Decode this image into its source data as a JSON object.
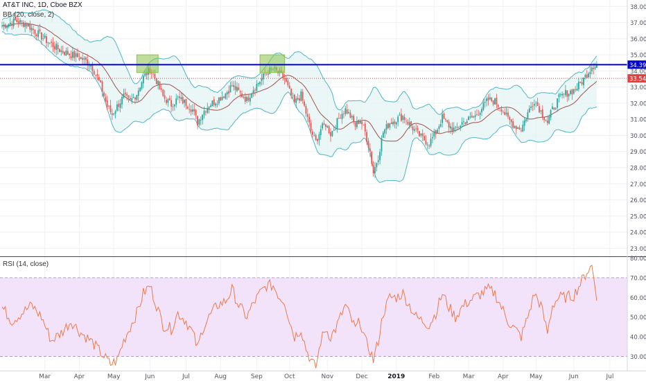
{
  "chart_data": [
    {
      "panel": "price",
      "type": "candlestick",
      "title": "AT&T INC, 1D, Cboe BZX",
      "indicator_label": "BB (20, close, 2)",
      "ylim": [
        22.5,
        38.4
      ],
      "y_ticks": [
        "38.00",
        "37.00",
        "36.00",
        "35.00",
        "34.00",
        "33.00",
        "32.00",
        "31.00",
        "30.00",
        "29.00",
        "28.00",
        "27.00",
        "26.00",
        "25.00",
        "24.00",
        "23.00"
      ],
      "y_tick_values": [
        38,
        37,
        36,
        35,
        34,
        33,
        32,
        31,
        30,
        29,
        28,
        27,
        26,
        25,
        24,
        23
      ],
      "x_ticks": [
        "Mar",
        "Apr",
        "May",
        "Jun",
        "Jul",
        "Aug",
        "Sep",
        "Oct",
        "Nov",
        "Dec",
        "2019",
        "Feb",
        "Mar",
        "Apr",
        "May",
        "Jun",
        "Jul"
      ],
      "x_tick_index": [
        26,
        47,
        68,
        90,
        112,
        133,
        155,
        175,
        198,
        219,
        240,
        263,
        284,
        305,
        325,
        348,
        370
      ],
      "horizontal_levels": [
        {
          "label": "34.39",
          "value": 34.39,
          "color": "#0000cc"
        },
        {
          "label": "33.54",
          "value": 33.54,
          "color": "#e04040"
        }
      ],
      "highlight_boxes": [
        {
          "from_index": 82,
          "to_index": 95,
          "low": 33.9,
          "high": 35.0,
          "color": "#8bc34a"
        },
        {
          "from_index": 157,
          "to_index": 172,
          "low": 33.9,
          "high": 35.0,
          "color": "#8bc34a"
        }
      ],
      "series_close_keyframes": [
        [
          0,
          36.8
        ],
        [
          8,
          37.1
        ],
        [
          15,
          36.9
        ],
        [
          22,
          36.3
        ],
        [
          28,
          35.8
        ],
        [
          35,
          35.3
        ],
        [
          42,
          35.0
        ],
        [
          48,
          34.8
        ],
        [
          54,
          34.4
        ],
        [
          58,
          33.6
        ],
        [
          61,
          32.8
        ],
        [
          64,
          31.8
        ],
        [
          67,
          31.3
        ],
        [
          70,
          31.8
        ],
        [
          74,
          32.4
        ],
        [
          78,
          32.1
        ],
        [
          82,
          32.6
        ],
        [
          86,
          33.6
        ],
        [
          90,
          34.1
        ],
        [
          94,
          33.4
        ],
        [
          98,
          32.4
        ],
        [
          103,
          31.9
        ],
        [
          107,
          32.3
        ],
        [
          112,
          32.0
        ],
        [
          116,
          31.6
        ],
        [
          119,
          30.8
        ],
        [
          122,
          31.4
        ],
        [
          126,
          31.9
        ],
        [
          131,
          32.2
        ],
        [
          136,
          32.6
        ],
        [
          140,
          33.1
        ],
        [
          144,
          32.7
        ],
        [
          149,
          32.2
        ],
        [
          153,
          32.9
        ],
        [
          157,
          33.4
        ],
        [
          161,
          33.9
        ],
        [
          165,
          34.1
        ],
        [
          169,
          33.8
        ],
        [
          172,
          33.5
        ],
        [
          175,
          32.7
        ],
        [
          178,
          32.0
        ],
        [
          182,
          32.5
        ],
        [
          185,
          31.4
        ],
        [
          188,
          30.3
        ],
        [
          191,
          29.6
        ],
        [
          194,
          30.4
        ],
        [
          197,
          30.7
        ],
        [
          200,
          30.1
        ],
        [
          203,
          30.6
        ],
        [
          206,
          31.3
        ],
        [
          209,
          31.6
        ],
        [
          212,
          31.2
        ],
        [
          215,
          30.6
        ],
        [
          218,
          31.0
        ],
        [
          221,
          30.2
        ],
        [
          224,
          29.0
        ],
        [
          226,
          27.7
        ],
        [
          229,
          28.7
        ],
        [
          232,
          30.2
        ],
        [
          236,
          30.8
        ],
        [
          240,
          31.0
        ],
        [
          244,
          31.2
        ],
        [
          248,
          30.7
        ],
        [
          252,
          30.2
        ],
        [
          256,
          29.8
        ],
        [
          260,
          29.5
        ],
        [
          264,
          30.2
        ],
        [
          268,
          31.1
        ],
        [
          272,
          30.6
        ],
        [
          276,
          30.3
        ],
        [
          280,
          30.8
        ],
        [
          284,
          31.0
        ],
        [
          288,
          31.2
        ],
        [
          292,
          31.7
        ],
        [
          296,
          32.2
        ],
        [
          300,
          32.1
        ],
        [
          304,
          31.7
        ],
        [
          308,
          31.0
        ],
        [
          312,
          30.6
        ],
        [
          316,
          30.4
        ],
        [
          320,
          31.4
        ],
        [
          324,
          32.2
        ],
        [
          328,
          31.5
        ],
        [
          332,
          30.8
        ],
        [
          335,
          31.6
        ],
        [
          339,
          32.3
        ],
        [
          343,
          32.6
        ],
        [
          348,
          32.8
        ],
        [
          352,
          33.2
        ],
        [
          356,
          33.8
        ],
        [
          359,
          34.3
        ],
        [
          362,
          34.4
        ]
      ],
      "rsi_keyframes": [
        [
          0,
          55
        ],
        [
          6,
          48
        ],
        [
          12,
          52
        ],
        [
          18,
          56
        ],
        [
          24,
          50
        ],
        [
          30,
          38
        ],
        [
          36,
          42
        ],
        [
          42,
          48
        ],
        [
          48,
          42
        ],
        [
          54,
          38
        ],
        [
          58,
          34
        ],
        [
          62,
          30
        ],
        [
          66,
          26
        ],
        [
          70,
          28
        ],
        [
          74,
          38
        ],
        [
          78,
          45
        ],
        [
          82,
          52
        ],
        [
          86,
          62
        ],
        [
          90,
          66
        ],
        [
          94,
          56
        ],
        [
          98,
          46
        ],
        [
          103,
          44
        ],
        [
          107,
          52
        ],
        [
          112,
          48
        ],
        [
          116,
          42
        ],
        [
          119,
          34
        ],
        [
          122,
          44
        ],
        [
          126,
          50
        ],
        [
          131,
          56
        ],
        [
          136,
          58
        ],
        [
          140,
          64
        ],
        [
          144,
          56
        ],
        [
          149,
          50
        ],
        [
          153,
          57
        ],
        [
          157,
          62
        ],
        [
          161,
          66
        ],
        [
          165,
          66
        ],
        [
          169,
          60
        ],
        [
          172,
          58
        ],
        [
          175,
          48
        ],
        [
          178,
          40
        ],
        [
          182,
          44
        ],
        [
          185,
          34
        ],
        [
          188,
          28
        ],
        [
          191,
          24
        ],
        [
          194,
          38
        ],
        [
          197,
          44
        ],
        [
          200,
          40
        ],
        [
          203,
          44
        ],
        [
          206,
          50
        ],
        [
          209,
          56
        ],
        [
          212,
          50
        ],
        [
          215,
          44
        ],
        [
          218,
          48
        ],
        [
          221,
          38
        ],
        [
          224,
          33
        ],
        [
          226,
          28
        ],
        [
          229,
          38
        ],
        [
          232,
          52
        ],
        [
          236,
          60
        ],
        [
          240,
          60
        ],
        [
          244,
          62
        ],
        [
          248,
          56
        ],
        [
          252,
          50
        ],
        [
          256,
          48
        ],
        [
          260,
          46
        ],
        [
          264,
          52
        ],
        [
          268,
          62
        ],
        [
          272,
          55
        ],
        [
          276,
          50
        ],
        [
          280,
          55
        ],
        [
          284,
          58
        ],
        [
          288,
          60
        ],
        [
          292,
          62
        ],
        [
          296,
          64
        ],
        [
          300,
          62
        ],
        [
          304,
          55
        ],
        [
          308,
          48
        ],
        [
          312,
          44
        ],
        [
          316,
          40
        ],
        [
          320,
          50
        ],
        [
          324,
          62
        ],
        [
          328,
          56
        ],
        [
          332,
          42
        ],
        [
          335,
          56
        ],
        [
          339,
          60
        ],
        [
          343,
          60
        ],
        [
          348,
          61
        ],
        [
          352,
          67
        ],
        [
          356,
          73
        ],
        [
          359,
          76
        ],
        [
          362,
          61
        ]
      ]
    },
    {
      "panel": "rsi",
      "type": "line",
      "title": "RSI (14, close)",
      "ylim": [
        22.8,
        80.5
      ],
      "y_ticks": [
        "80.00",
        "70.00",
        "60.00",
        "50.00",
        "40.00",
        "30.00"
      ],
      "y_tick_values": [
        80,
        70,
        60,
        50,
        40,
        30
      ],
      "band": [
        30,
        70
      ],
      "color": "#f07848"
    }
  ],
  "colors": {
    "up": "#26a69a",
    "down": "#ef5350",
    "bb_band": "#4db6c7",
    "bb_fill": "#e6f4f4",
    "bb_basis": "#a0504a",
    "rsi_line": "#f07848",
    "rsi_band": "#f2e3fb",
    "grid": "#eef0f3",
    "axis_text": "#50535e"
  }
}
